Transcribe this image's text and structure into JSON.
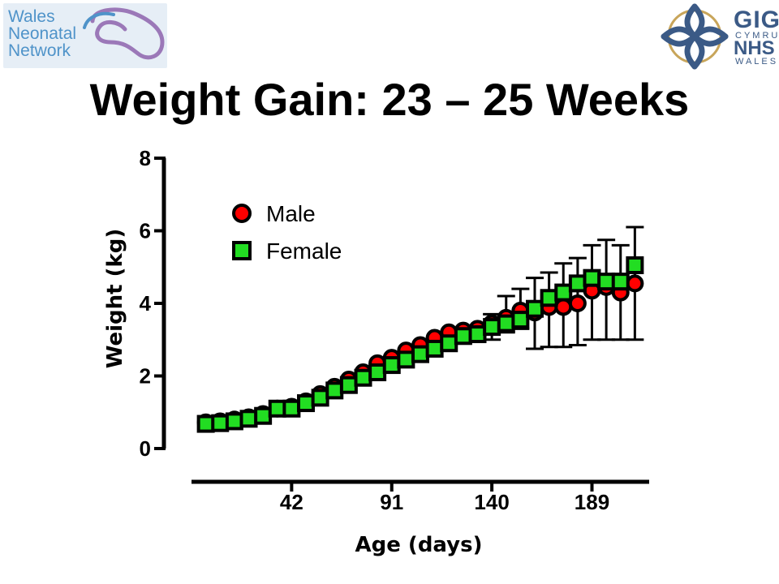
{
  "header": {
    "title": "Weight Gain: 23 – 25 Weeks"
  },
  "logos": {
    "left": {
      "lines": [
        "Wales",
        "Neonatal",
        "Network"
      ],
      "accent": "#9b78b8",
      "text_color": "#4f93c9"
    },
    "right": {
      "line1": "GIG",
      "line2": "CYMRU",
      "line3": "NHS",
      "line4": "WALES",
      "color": "#3b5a86",
      "gold": "#c8a55a"
    }
  },
  "chart_data": {
    "type": "scatter",
    "xlabel": "Age (days)",
    "ylabel": "Weight (kg)",
    "xlim": [
      -7,
      217
    ],
    "ylim": [
      0,
      8
    ],
    "x_ticks": [
      42,
      91,
      140,
      189
    ],
    "y_ticks": [
      0,
      2,
      4,
      6,
      8
    ],
    "legend_position": "top-left",
    "series": [
      {
        "name": "Male",
        "marker": "circle",
        "color": "#ff0000",
        "x": [
          0,
          7,
          14,
          21,
          28,
          35,
          42,
          49,
          56,
          63,
          70,
          77,
          84,
          91,
          98,
          105,
          112,
          119,
          126,
          133,
          140,
          147,
          154,
          161,
          168,
          175,
          182,
          189,
          196,
          203,
          210
        ],
        "y": [
          0.72,
          0.75,
          0.8,
          0.86,
          0.95,
          1.1,
          1.15,
          1.3,
          1.5,
          1.7,
          1.9,
          2.1,
          2.35,
          2.5,
          2.7,
          2.85,
          3.05,
          3.2,
          3.25,
          3.3,
          3.45,
          3.6,
          3.8,
          3.75,
          3.9,
          3.9,
          4.0,
          4.35,
          4.45,
          4.3,
          4.55
        ]
      },
      {
        "name": "Female",
        "marker": "square",
        "color": "#22dd22",
        "x": [
          0,
          7,
          14,
          21,
          28,
          35,
          42,
          49,
          56,
          63,
          70,
          77,
          84,
          91,
          98,
          105,
          112,
          119,
          126,
          133,
          140,
          147,
          154,
          161,
          168,
          175,
          182,
          189,
          196,
          203,
          210
        ],
        "y": [
          0.68,
          0.7,
          0.75,
          0.82,
          0.9,
          1.1,
          1.1,
          1.25,
          1.4,
          1.6,
          1.75,
          1.95,
          2.1,
          2.3,
          2.45,
          2.6,
          2.75,
          2.9,
          3.1,
          3.15,
          3.35,
          3.45,
          3.55,
          3.85,
          4.15,
          4.3,
          4.55,
          4.7,
          4.6,
          4.6,
          5.05
        ]
      }
    ],
    "error_bars": [
      {
        "x": 140,
        "low": 3.0,
        "high": 3.7
      },
      {
        "x": 147,
        "low": 3.2,
        "high": 4.2
      },
      {
        "x": 154,
        "low": 3.3,
        "high": 4.4
      },
      {
        "x": 161,
        "low": 2.75,
        "high": 4.7
      },
      {
        "x": 168,
        "low": 2.8,
        "high": 4.85
      },
      {
        "x": 175,
        "low": 2.8,
        "high": 5.1
      },
      {
        "x": 182,
        "low": 2.85,
        "high": 5.25
      },
      {
        "x": 189,
        "low": 3.0,
        "high": 5.6
      },
      {
        "x": 196,
        "low": 3.0,
        "high": 5.75
      },
      {
        "x": 203,
        "low": 3.0,
        "high": 5.6
      },
      {
        "x": 210,
        "low": 3.0,
        "high": 6.1
      }
    ]
  }
}
